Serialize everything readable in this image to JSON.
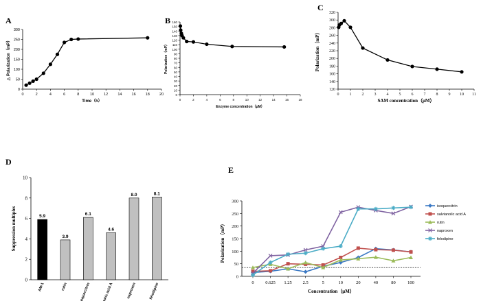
{
  "figure": {
    "panels": [
      "A",
      "B",
      "C",
      "D",
      "E"
    ],
    "colors": {
      "line": "#000000",
      "bar_black": "#000000",
      "bar_gray": "#c0c0c0",
      "isoquercitrin": "#3b79c4",
      "salvianolic": "#c0504d",
      "rutin": "#9bbb59",
      "naproxen": "#8064a2",
      "felodipine": "#4bacc6"
    }
  },
  "chart_data": [
    {
      "panel": "A",
      "type": "line",
      "title": "",
      "xlabel": "Time（h）",
      "ylabel": "△ Polarization（mP）",
      "xlim": [
        0,
        20
      ],
      "ylim": [
        0,
        300
      ],
      "xticks": [
        "0",
        "2",
        "4",
        "6",
        "8",
        "10",
        "12",
        "14",
        "16",
        "18",
        "20"
      ],
      "yticks": [
        "0",
        "50",
        "100",
        "150",
        "200",
        "250",
        "300"
      ],
      "x": [
        0.5,
        1,
        1.5,
        2,
        3,
        4,
        5,
        6,
        7,
        8,
        18
      ],
      "y": [
        20,
        30,
        40,
        50,
        80,
        125,
        175,
        235,
        250,
        252,
        258
      ]
    },
    {
      "panel": "B",
      "type": "line",
      "title": "",
      "xlabel": "Enzyme concentration（μM）",
      "ylabel": "Polarization（mP）",
      "xlim": [
        0,
        18
      ],
      "ylim": [
        0,
        160
      ],
      "xticks": [
        "0",
        "2",
        "4",
        "6",
        "8",
        "10",
        "12",
        "14",
        "16",
        "18"
      ],
      "yticks": [
        "0",
        "10",
        "20",
        "30",
        "40",
        "50",
        "60",
        "70",
        "80",
        "90",
        "100",
        "110",
        "120",
        "130",
        "140",
        "150",
        "160"
      ],
      "x": [
        0.05,
        0.1,
        0.2,
        0.3,
        0.5,
        1,
        2,
        4,
        7.8,
        15.6
      ],
      "y": [
        151,
        142,
        135,
        130,
        125,
        117,
        116,
        111,
        106,
        105
      ]
    },
    {
      "panel": "C",
      "type": "line",
      "title": "",
      "xlabel": "SAM concentration（μM）",
      "ylabel": "Polarization（mP）",
      "xlim": [
        0,
        11
      ],
      "ylim": [
        120,
        320
      ],
      "xticks": [
        "0",
        "1",
        "2",
        "3",
        "4",
        "5",
        "6",
        "7",
        "8",
        "9",
        "10",
        "11"
      ],
      "yticks": [
        "120",
        "140",
        "160",
        "180",
        "200",
        "220",
        "240",
        "260",
        "280",
        "300",
        "320"
      ],
      "x": [
        0.05,
        0.1,
        0.25,
        0.5,
        1,
        2,
        4,
        6,
        8,
        10
      ],
      "y": [
        281,
        287,
        291,
        298,
        281,
        227,
        196,
        179,
        172,
        165
      ]
    },
    {
      "panel": "D",
      "type": "bar",
      "title": "",
      "xlabel": "",
      "ylabel": "Suppression multiples",
      "ylim": [
        0,
        10
      ],
      "yticks": [
        "0",
        "2",
        "4",
        "6",
        "8",
        "10"
      ],
      "categories": [
        "AM-1",
        "rutin",
        "isoquercitrin",
        "salvianolic acid A",
        "naproxen",
        "felodipine"
      ],
      "values": [
        5.9,
        3.9,
        6.1,
        4.6,
        8.0,
        8.1
      ],
      "labels": [
        "5.9",
        "3.9",
        "6.1",
        "4.6",
        "8.0",
        "8.1"
      ]
    },
    {
      "panel": "E",
      "type": "line",
      "title": "",
      "xlabel": "Concentration（μM）",
      "ylabel": "Polarization（mP）",
      "ylim": [
        0,
        300
      ],
      "yticks": [
        "0",
        "50",
        "100",
        "150",
        "200",
        "250",
        "300"
      ],
      "categories": [
        "0",
        "0.625",
        "1.25",
        "2.5",
        "5",
        "10",
        "20",
        "40",
        "80",
        "100"
      ],
      "reference_line": 35,
      "series": [
        {
          "name": "isoquercitrin",
          "values": [
            15,
            20,
            30,
            18,
            40,
            55,
            75,
            110,
            105,
            97
          ]
        },
        {
          "name": "salvianolic acid A",
          "values": [
            20,
            22,
            50,
            48,
            45,
            75,
            112,
            106,
            104,
            97
          ]
        },
        {
          "name": "rutin",
          "values": [
            35,
            48,
            30,
            55,
            35,
            65,
            70,
            76,
            62,
            75
          ]
        },
        {
          "name": "naproxen",
          "values": [
            12,
            82,
            85,
            105,
            120,
            255,
            275,
            262,
            250,
            277
          ]
        },
        {
          "name": "felodipine",
          "values": [
            5,
            55,
            88,
            92,
            110,
            120,
            268,
            268,
            272,
            275
          ]
        }
      ]
    }
  ]
}
